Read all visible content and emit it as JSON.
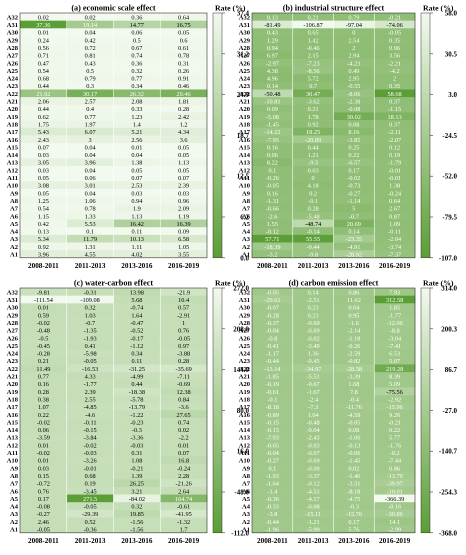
{
  "rows": [
    "A32",
    "A31",
    "A30",
    "A29",
    "A28",
    "A27",
    "A26",
    "A25",
    "A24",
    "A23",
    "A22",
    "A21",
    "A20",
    "A19",
    "A18",
    "A17",
    "A16",
    "A15",
    "A14",
    "A13",
    "A12",
    "A11",
    "A10",
    "A9",
    "A8",
    "A7",
    "A6",
    "A5",
    "A4",
    "A3",
    "A2",
    "A1"
  ],
  "columns": [
    "2008-2011",
    "2011-2013",
    "2013-2016",
    "2016-2019"
  ],
  "legend_title": "Rate (%)",
  "chart_data": [
    {
      "type": "heatmap",
      "title": "(a) economic scale effect",
      "ticks": [
        "37.4",
        "31.2",
        "24.9",
        "18.7",
        "12.5",
        "6.2",
        "0.0"
      ],
      "vmin": 0.0,
      "vmax": 37.4,
      "colors": [
        "#5b9e35",
        "#f2f9ee"
      ],
      "values": [
        [
          "0.02",
          "0.02",
          "0.36",
          "0.64"
        ],
        [
          "37.36",
          "19.14",
          "14.77",
          "16.75"
        ],
        [
          "0.01",
          "0.04",
          "0.06",
          "0.05"
        ],
        [
          "0.24",
          "0.42",
          "0.5",
          "0.6"
        ],
        [
          "0.56",
          "0.72",
          "0.67",
          "0.61"
        ],
        [
          "0.71",
          "0.81",
          "0.74",
          "0.78"
        ],
        [
          "0.47",
          "0.43",
          "0.36",
          "0.31"
        ],
        [
          "0.54",
          "0.5",
          "0.32",
          "0.26"
        ],
        [
          "0.68",
          "0.79",
          "0.77",
          "0.91"
        ],
        [
          "0.44",
          "0.3",
          "0.34",
          "0.46"
        ],
        [
          "21.92",
          "30.17",
          "26.32",
          "29.46"
        ],
        [
          "2.06",
          "2.57",
          "2.08",
          "1.81"
        ],
        [
          "0.44",
          "0.4",
          "0.33",
          "0.28"
        ],
        [
          "0.62",
          "0.77",
          "1.23",
          "2.42"
        ],
        [
          "1.75",
          "1.97",
          "1.4",
          "1.2"
        ],
        [
          "5.43",
          "6.07",
          "5.21",
          "4.34"
        ],
        [
          "2.43",
          "3",
          "2.56",
          "3.6"
        ],
        [
          "0.07",
          "0.04",
          "0.01",
          "0.05"
        ],
        [
          "0.03",
          "0.04",
          "0.04",
          "0.05"
        ],
        [
          "3.05",
          "3.96",
          "1.38",
          "1.13"
        ],
        [
          "0.03",
          "0.04",
          "0.05",
          "0.05"
        ],
        [
          "0.05",
          "0.06",
          "0.07",
          "0.07"
        ],
        [
          "3.08",
          "3.01",
          "2.53",
          "2.39"
        ],
        [
          "0.05",
          "0.04",
          "0.03",
          "0.03"
        ],
        [
          "1.25",
          "1.06",
          "0.94",
          "0.96"
        ],
        [
          "0.54",
          "0.78",
          "1.9",
          "2.09"
        ],
        [
          "1.15",
          "1.33",
          "1.13",
          "1.19"
        ],
        [
          "0.42",
          "5.53",
          "16.42",
          "16.39"
        ],
        [
          "0.13",
          "0.1",
          "0.11",
          "0.09"
        ],
        [
          "5.34",
          "11.79",
          "10.13",
          "6.58"
        ],
        [
          "0.92",
          "1.31",
          "1.11",
          "1.05"
        ],
        [
          "3.96",
          "4.55",
          "4.02",
          "3.55"
        ]
      ]
    },
    {
      "type": "heatmap",
      "title": "(b) industrial structure effect",
      "ticks": [
        "58.0",
        "30.5",
        "3.0",
        "-24.5",
        "-52.0",
        "-79.5",
        "-107.0"
      ],
      "vmin": -107.0,
      "vmax": 58.0,
      "colors": [
        "#5b9e35",
        "#f2f9ee"
      ],
      "values": [
        [
          "0.13",
          "0.21",
          "0.79",
          "-0.21"
        ],
        [
          "-81.49",
          "-106.87",
          "-97.04",
          "-74.06"
        ],
        [
          "0.43",
          "0.65",
          "0",
          "-0.05"
        ],
        [
          "1.29",
          "1.42",
          "2.54",
          "0.35"
        ],
        [
          "0.94",
          "-0.46",
          "2",
          "0.96"
        ],
        [
          "6.97",
          "2.15",
          "2.94",
          "3.56"
        ],
        [
          "-2.97",
          "-7.23",
          "-4.23",
          "-2.21"
        ],
        [
          "4.38",
          "-8.56",
          "0.49",
          "-4.2"
        ],
        [
          "4.96",
          "5.72",
          "2.95",
          "2"
        ],
        [
          "0.14",
          "0.7",
          "-0.55",
          "0.35"
        ],
        [
          "-50.48",
          "30.47",
          "-8.06",
          "58.68"
        ],
        [
          "-10.81",
          "-3.62",
          "-2.38",
          "0.37"
        ],
        [
          "0.09",
          "0.21",
          "-0.08",
          "-1.15"
        ],
        [
          "-5.08",
          "1.78",
          "30.02",
          "18.13"
        ],
        [
          "-1.45",
          "0.92",
          "0.08",
          "0.37"
        ],
        [
          "-14.22",
          "18.25",
          "8.16",
          "-2.11"
        ],
        [
          "-7.95",
          "-20.89",
          "-3.85",
          "-2.07"
        ],
        [
          "0.16",
          "0.44",
          "0.25",
          "0.12"
        ],
        [
          "0.06",
          "1.21",
          "0.22",
          "0.19"
        ],
        [
          "8.22",
          "-9.5",
          "-6.57",
          "-1.79"
        ],
        [
          "0.1",
          "0.03",
          "0.17",
          "-0.01"
        ],
        [
          "-0.26",
          "0",
          "-0.02",
          "-0.01"
        ],
        [
          "-0.05",
          "4.18",
          "-0.73",
          "1.38"
        ],
        [
          "0.16",
          "0.2",
          "-0.27",
          "-0.24"
        ],
        [
          "-1.31",
          "-0.1",
          "-1.14",
          "0.64"
        ],
        [
          "-0.66",
          "0.28",
          "5",
          "2.67"
        ],
        [
          "-2.6",
          "-5.48",
          "-0.7",
          "0.87"
        ],
        [
          "1.55",
          "-48.74",
          "20.69",
          "1.09"
        ],
        [
          "-0.12",
          "-0.14",
          "0.14",
          "-0.11"
        ],
        [
          "57.71",
          "55.55",
          "-23.35",
          "-2.04"
        ],
        [
          "-18.39",
          "-9.44",
          "-4.91",
          "-3.74"
        ],
        [
          "-3.2",
          "-9.8",
          "-28.92",
          "-7.37"
        ]
      ]
    },
    {
      "type": "heatmap",
      "title": "(c) water-carbon effect",
      "ticks": [
        "272.0",
        "208.0",
        "144.0",
        "80.0",
        "16.0",
        "-48.0",
        "-112.0"
      ],
      "vmin": -112.0,
      "vmax": 272.0,
      "colors": [
        "#5b9e35",
        "#f2f9ee"
      ],
      "values": [
        [
          "-9.81",
          "-0.31",
          "13.98",
          "-21.9"
        ],
        [
          "-111.54",
          "-109.08",
          "5.68",
          "10.4"
        ],
        [
          "0.01",
          "0.32",
          "-0.74",
          "0.57"
        ],
        [
          "0.59",
          "1.03",
          "1.64",
          "-2.91"
        ],
        [
          "-0.02",
          "-0.7",
          "-0.47",
          "1"
        ],
        [
          "-0.48",
          "-1.35",
          "-0.52",
          "0.76"
        ],
        [
          "-0.5",
          "-1.93",
          "-0.17",
          "-0.05"
        ],
        [
          "-0.45",
          "0.41",
          "-1.12",
          "0.97"
        ],
        [
          "-0.28",
          "-5.98",
          "0.34",
          "-3.88"
        ],
        [
          "0.21",
          "-0.05",
          "0.11",
          "0.28"
        ],
        [
          "11.49",
          "-16.53",
          "-31.25",
          "-35.69"
        ],
        [
          "0.77",
          "4.33",
          "-4.99",
          "-7.11"
        ],
        [
          "0.16",
          "-1.77",
          "0.44",
          "-0.69"
        ],
        [
          "0.28",
          "2.39",
          "-18.38",
          "12.38"
        ],
        [
          "0.38",
          "2.55",
          "-5.78",
          "0.84"
        ],
        [
          "1.07",
          "-4.85",
          "-13.79",
          "-3.6"
        ],
        [
          "0.22",
          "-4.6",
          "-1.22",
          "27.65"
        ],
        [
          "-0.02",
          "-0.11",
          "-0.23",
          "0.74"
        ],
        [
          "0.06",
          "-0.15",
          "-0.3",
          "0.02"
        ],
        [
          "-3.59",
          "-3.84",
          "-3.36",
          "-2.2"
        ],
        [
          "0.01",
          "-0.02",
          "-0.03",
          "0.01"
        ],
        [
          "-0.02",
          "-0.03",
          "0.31",
          "0.07"
        ],
        [
          "0.01",
          "-3.26",
          "1.08",
          "16.8"
        ],
        [
          "0.03",
          "-0.01",
          "-0.21",
          "-0.24"
        ],
        [
          "0.15",
          "0.68",
          "1.39",
          "2.28"
        ],
        [
          "-0.72",
          "0.19",
          "26.25",
          "-21.26"
        ],
        [
          "0.76",
          "-3.45",
          "3.21",
          "2.64"
        ],
        [
          "0.17",
          "271.5",
          "-84.02",
          "164.74"
        ],
        [
          "-0.08",
          "-0.05",
          "0.32",
          "-0.61"
        ],
        [
          "-0.27",
          "-29.39",
          "19.85",
          "-41.95"
        ],
        [
          "2.46",
          "0.52",
          "-1.56",
          "-1.32"
        ],
        [
          "-0.05",
          "-0.36",
          "-1.56",
          "1.7"
        ]
      ]
    },
    {
      "type": "heatmap",
      "title": "(d) carbon emission effect",
      "ticks": [
        "314.0",
        "200.3",
        "86.7",
        "-27.0",
        "-140.7",
        "-254.3",
        "-368.0"
      ],
      "vmin": -368.0,
      "vmax": 314.0,
      "colors": [
        "#5b9e35",
        "#f2f9ee"
      ],
      "values": [
        [
          "-0.05",
          "0.14",
          "0.86",
          "7.93"
        ],
        [
          "-29.61",
          "-2.51",
          "11.62",
          "312.58"
        ],
        [
          "-0.07",
          "0.23",
          "0.04",
          "1.85"
        ],
        [
          "-0.28",
          "0.23",
          "0.95",
          "-1.77"
        ],
        [
          "-0.37",
          "-0.69",
          "-1.6",
          "-12.06"
        ],
        [
          "-0.04",
          "-0.69",
          "-2.14",
          "-8.8"
        ],
        [
          "-0.8",
          "-0.02",
          "-1.18",
          "-3.04"
        ],
        [
          "-0.41",
          "-3.49",
          "-0.26",
          "-7.41"
        ],
        [
          "-1.17",
          "1.36",
          "-2.59",
          "6.53"
        ],
        [
          "-0.44",
          "-0.45",
          "-0.82",
          "5.07"
        ],
        [
          "-13.14",
          "-34.97",
          "-28.58",
          "219.28"
        ],
        [
          "-1.85",
          "-5.51",
          "-3.39",
          "8.39"
        ],
        [
          "-0.19",
          "-0.67",
          "1.68",
          "5.09"
        ],
        [
          "-0.61",
          "-1.67",
          "7.8",
          "-75.56"
        ],
        [
          "-0.1",
          "-2.4",
          "-0.4",
          "-2.92"
        ],
        [
          "-8.18",
          "-7.3",
          "-11.76",
          "-15.96"
        ],
        [
          "-0.89",
          "1.04",
          "-4.59",
          "9.26"
        ],
        [
          "-0.15",
          "-0.48",
          "-0.05",
          "-0.21"
        ],
        [
          "-0.15",
          "-0.04",
          "0.08",
          "0.22"
        ],
        [
          "-7.93",
          "-2.43",
          "-1.06",
          "5.77"
        ],
        [
          "-0.05",
          "-0.03",
          "-0.13",
          "-1.76"
        ],
        [
          "-0.04",
          "-0.07",
          "-0.06",
          "-0.2"
        ],
        [
          "-0.27",
          "-0.69",
          "-1.45",
          "-7.44"
        ],
        [
          "0.1",
          "-0.09",
          "0.02",
          "0.86"
        ],
        [
          "-1.93",
          "-3.37",
          "-1.46",
          "-13.79"
        ],
        [
          "-1.64",
          "-0.12",
          "-3.51",
          "-39.97"
        ],
        [
          "-1.4",
          "-4.51",
          "-8.18",
          "-10.01"
        ],
        [
          "-0.36",
          "-4.17",
          "-4.75",
          "-366.39"
        ],
        [
          "-0.33",
          "-0.08",
          "-0.3",
          "-0.16"
        ],
        [
          "-3.8",
          "-15.11",
          "-15.76",
          "-30.86"
        ],
        [
          "-0.44",
          "-1.21",
          "0.17",
          "14.1"
        ],
        [
          "-1.96",
          "-5.99",
          "5.76",
          "-2.99"
        ]
      ]
    }
  ]
}
